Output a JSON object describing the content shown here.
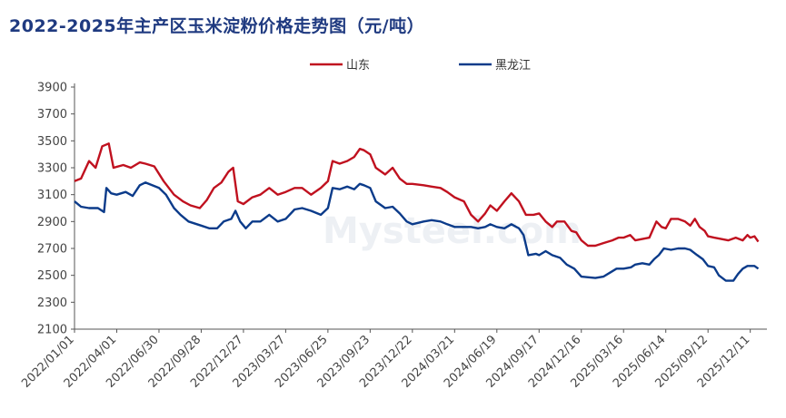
{
  "chart_data": {
    "type": "line",
    "title": "2022-2025年主产区玉米淀粉价格走势图（元/吨）",
    "watermark": "Mysteel.com",
    "ylim": [
      2100,
      3900
    ],
    "yticks": [
      "3900",
      "3700",
      "3500",
      "3300",
      "3100",
      "2900",
      "2700",
      "2500",
      "2300",
      "2100"
    ],
    "x_tick_labels": [
      "2022/01/01",
      "2022/04/01",
      "2022/06/30",
      "2022/09/28",
      "2022/12/27",
      "2023/03/27",
      "2023/06/25",
      "2023/09/23",
      "2023/12/22",
      "2024/03/21",
      "2024/06/19",
      "2024/09/17",
      "2024/12/16",
      "2025/03/16",
      "2025/06/14",
      "2025/09/12",
      "2025/12/11"
    ],
    "grid": false,
    "legend_position": "top",
    "colors": {
      "shandong": "#c0111f",
      "heilongjiang": "#0b3b8a"
    },
    "series": [
      {
        "name": "山东",
        "color": "#c0111f",
        "points": [
          [
            "2022-01-01",
            3200
          ],
          [
            "2022-01-15",
            3220
          ],
          [
            "2022-02-01",
            3350
          ],
          [
            "2022-02-15",
            3300
          ],
          [
            "2022-03-01",
            3460
          ],
          [
            "2022-03-15",
            3480
          ],
          [
            "2022-03-25",
            3300
          ],
          [
            "2022-04-15",
            3320
          ],
          [
            "2022-05-01",
            3300
          ],
          [
            "2022-05-20",
            3340
          ],
          [
            "2022-06-01",
            3330
          ],
          [
            "2022-06-20",
            3310
          ],
          [
            "2022-07-10",
            3200
          ],
          [
            "2022-08-01",
            3100
          ],
          [
            "2022-08-20",
            3050
          ],
          [
            "2022-09-05",
            3020
          ],
          [
            "2022-09-25",
            3000
          ],
          [
            "2022-10-10",
            3060
          ],
          [
            "2022-10-25",
            3150
          ],
          [
            "2022-11-10",
            3190
          ],
          [
            "2022-11-25",
            3270
          ],
          [
            "2022-12-05",
            3300
          ],
          [
            "2022-12-15",
            3050
          ],
          [
            "2022-12-27",
            3030
          ],
          [
            "2023-01-15",
            3080
          ],
          [
            "2023-02-01",
            3100
          ],
          [
            "2023-02-20",
            3150
          ],
          [
            "2023-03-10",
            3100
          ],
          [
            "2023-03-27",
            3120
          ],
          [
            "2023-04-15",
            3150
          ],
          [
            "2023-05-01",
            3150
          ],
          [
            "2023-05-20",
            3100
          ],
          [
            "2023-06-10",
            3150
          ],
          [
            "2023-06-25",
            3200
          ],
          [
            "2023-07-05",
            3350
          ],
          [
            "2023-07-20",
            3330
          ],
          [
            "2023-08-05",
            3350
          ],
          [
            "2023-08-20",
            3380
          ],
          [
            "2023-09-01",
            3440
          ],
          [
            "2023-09-10",
            3430
          ],
          [
            "2023-09-23",
            3400
          ],
          [
            "2023-10-05",
            3300
          ],
          [
            "2023-10-25",
            3250
          ],
          [
            "2023-11-10",
            3300
          ],
          [
            "2023-11-25",
            3220
          ],
          [
            "2023-12-10",
            3180
          ],
          [
            "2023-12-22",
            3180
          ],
          [
            "2024-01-15",
            3170
          ],
          [
            "2024-02-01",
            3160
          ],
          [
            "2024-02-20",
            3150
          ],
          [
            "2024-03-05",
            3120
          ],
          [
            "2024-03-21",
            3080
          ],
          [
            "2024-04-10",
            3050
          ],
          [
            "2024-04-25",
            2950
          ],
          [
            "2024-05-10",
            2900
          ],
          [
            "2024-05-25",
            2960
          ],
          [
            "2024-06-05",
            3020
          ],
          [
            "2024-06-19",
            2980
          ],
          [
            "2024-07-05",
            3050
          ],
          [
            "2024-07-20",
            3110
          ],
          [
            "2024-08-05",
            3050
          ],
          [
            "2024-08-20",
            2950
          ],
          [
            "2024-09-05",
            2950
          ],
          [
            "2024-09-17",
            2960
          ],
          [
            "2024-10-01",
            2900
          ],
          [
            "2024-10-15",
            2860
          ],
          [
            "2024-10-25",
            2900
          ],
          [
            "2024-11-10",
            2900
          ],
          [
            "2024-11-25",
            2830
          ],
          [
            "2024-12-05",
            2820
          ],
          [
            "2024-12-16",
            2760
          ],
          [
            "2024-12-30",
            2720
          ],
          [
            "2025-01-15",
            2720
          ],
          [
            "2025-02-01",
            2740
          ],
          [
            "2025-02-20",
            2760
          ],
          [
            "2025-03-05",
            2780
          ],
          [
            "2025-03-16",
            2780
          ],
          [
            "2025-03-30",
            2800
          ],
          [
            "2025-04-10",
            2760
          ],
          [
            "2025-04-25",
            2770
          ],
          [
            "2025-05-10",
            2780
          ],
          [
            "2025-05-25",
            2900
          ],
          [
            "2025-06-05",
            2860
          ],
          [
            "2025-06-14",
            2850
          ],
          [
            "2025-06-25",
            2920
          ],
          [
            "2025-07-10",
            2920
          ],
          [
            "2025-07-25",
            2900
          ],
          [
            "2025-08-05",
            2870
          ],
          [
            "2025-08-15",
            2920
          ],
          [
            "2025-08-25",
            2860
          ],
          [
            "2025-09-05",
            2830
          ],
          [
            "2025-09-12",
            2790
          ],
          [
            "2025-09-25",
            2780
          ],
          [
            "2025-10-10",
            2770
          ],
          [
            "2025-10-25",
            2760
          ],
          [
            "2025-11-10",
            2780
          ],
          [
            "2025-11-25",
            2760
          ],
          [
            "2025-12-05",
            2800
          ],
          [
            "2025-12-11",
            2780
          ],
          [
            "2025-12-20",
            2790
          ],
          [
            "2025-12-28",
            2750
          ]
        ]
      },
      {
        "name": "黑龙江",
        "color": "#0b3b8a",
        "points": [
          [
            "2022-01-01",
            3050
          ],
          [
            "2022-01-15",
            3010
          ],
          [
            "2022-02-01",
            3000
          ],
          [
            "2022-02-20",
            3000
          ],
          [
            "2022-03-05",
            2970
          ],
          [
            "2022-03-10",
            3150
          ],
          [
            "2022-03-20",
            3110
          ],
          [
            "2022-04-01",
            3100
          ],
          [
            "2022-04-20",
            3120
          ],
          [
            "2022-05-05",
            3090
          ],
          [
            "2022-05-20",
            3170
          ],
          [
            "2022-06-01",
            3190
          ],
          [
            "2022-06-30",
            3150
          ],
          [
            "2022-07-15",
            3100
          ],
          [
            "2022-08-01",
            3000
          ],
          [
            "2022-08-15",
            2950
          ],
          [
            "2022-09-01",
            2900
          ],
          [
            "2022-09-28",
            2870
          ],
          [
            "2022-10-15",
            2850
          ],
          [
            "2022-11-01",
            2850
          ],
          [
            "2022-11-15",
            2900
          ],
          [
            "2022-12-01",
            2920
          ],
          [
            "2022-12-10",
            2980
          ],
          [
            "2022-12-20",
            2900
          ],
          [
            "2023-01-01",
            2850
          ],
          [
            "2023-01-15",
            2900
          ],
          [
            "2023-02-01",
            2900
          ],
          [
            "2023-02-20",
            2950
          ],
          [
            "2023-03-10",
            2900
          ],
          [
            "2023-03-27",
            2920
          ],
          [
            "2023-04-15",
            2990
          ],
          [
            "2023-05-01",
            3000
          ],
          [
            "2023-05-20",
            2980
          ],
          [
            "2023-06-10",
            2950
          ],
          [
            "2023-06-25",
            3000
          ],
          [
            "2023-07-05",
            3150
          ],
          [
            "2023-07-20",
            3140
          ],
          [
            "2023-08-05",
            3160
          ],
          [
            "2023-08-20",
            3140
          ],
          [
            "2023-09-01",
            3180
          ],
          [
            "2023-09-10",
            3170
          ],
          [
            "2023-09-23",
            3150
          ],
          [
            "2023-10-05",
            3050
          ],
          [
            "2023-10-25",
            3000
          ],
          [
            "2023-11-10",
            3010
          ],
          [
            "2023-11-25",
            2960
          ],
          [
            "2023-12-10",
            2900
          ],
          [
            "2023-12-22",
            2880
          ],
          [
            "2024-01-15",
            2900
          ],
          [
            "2024-02-01",
            2910
          ],
          [
            "2024-02-20",
            2900
          ],
          [
            "2024-03-05",
            2880
          ],
          [
            "2024-03-21",
            2860
          ],
          [
            "2024-04-10",
            2860
          ],
          [
            "2024-04-25",
            2860
          ],
          [
            "2024-05-10",
            2850
          ],
          [
            "2024-05-25",
            2860
          ],
          [
            "2024-06-05",
            2880
          ],
          [
            "2024-06-19",
            2860
          ],
          [
            "2024-07-05",
            2850
          ],
          [
            "2024-07-20",
            2880
          ],
          [
            "2024-08-05",
            2850
          ],
          [
            "2024-08-15",
            2800
          ],
          [
            "2024-08-25",
            2650
          ],
          [
            "2024-09-10",
            2660
          ],
          [
            "2024-09-17",
            2650
          ],
          [
            "2024-10-01",
            2680
          ],
          [
            "2024-10-15",
            2650
          ],
          [
            "2024-11-01",
            2630
          ],
          [
            "2024-11-15",
            2580
          ],
          [
            "2024-12-01",
            2550
          ],
          [
            "2024-12-16",
            2490
          ],
          [
            "2025-01-15",
            2480
          ],
          [
            "2025-02-01",
            2490
          ],
          [
            "2025-02-15",
            2520
          ],
          [
            "2025-03-01",
            2550
          ],
          [
            "2025-03-16",
            2550
          ],
          [
            "2025-04-01",
            2560
          ],
          [
            "2025-04-10",
            2580
          ],
          [
            "2025-04-25",
            2590
          ],
          [
            "2025-05-10",
            2580
          ],
          [
            "2025-05-20",
            2620
          ],
          [
            "2025-05-30",
            2650
          ],
          [
            "2025-06-10",
            2700
          ],
          [
            "2025-06-25",
            2690
          ],
          [
            "2025-07-10",
            2700
          ],
          [
            "2025-07-25",
            2700
          ],
          [
            "2025-08-05",
            2690
          ],
          [
            "2025-08-20",
            2650
          ],
          [
            "2025-09-01",
            2620
          ],
          [
            "2025-09-12",
            2570
          ],
          [
            "2025-09-25",
            2560
          ],
          [
            "2025-10-05",
            2500
          ],
          [
            "2025-10-20",
            2460
          ],
          [
            "2025-11-05",
            2460
          ],
          [
            "2025-11-15",
            2510
          ],
          [
            "2025-11-25",
            2550
          ],
          [
            "2025-12-05",
            2570
          ],
          [
            "2025-12-20",
            2570
          ],
          [
            "2025-12-28",
            2550
          ]
        ]
      }
    ]
  }
}
